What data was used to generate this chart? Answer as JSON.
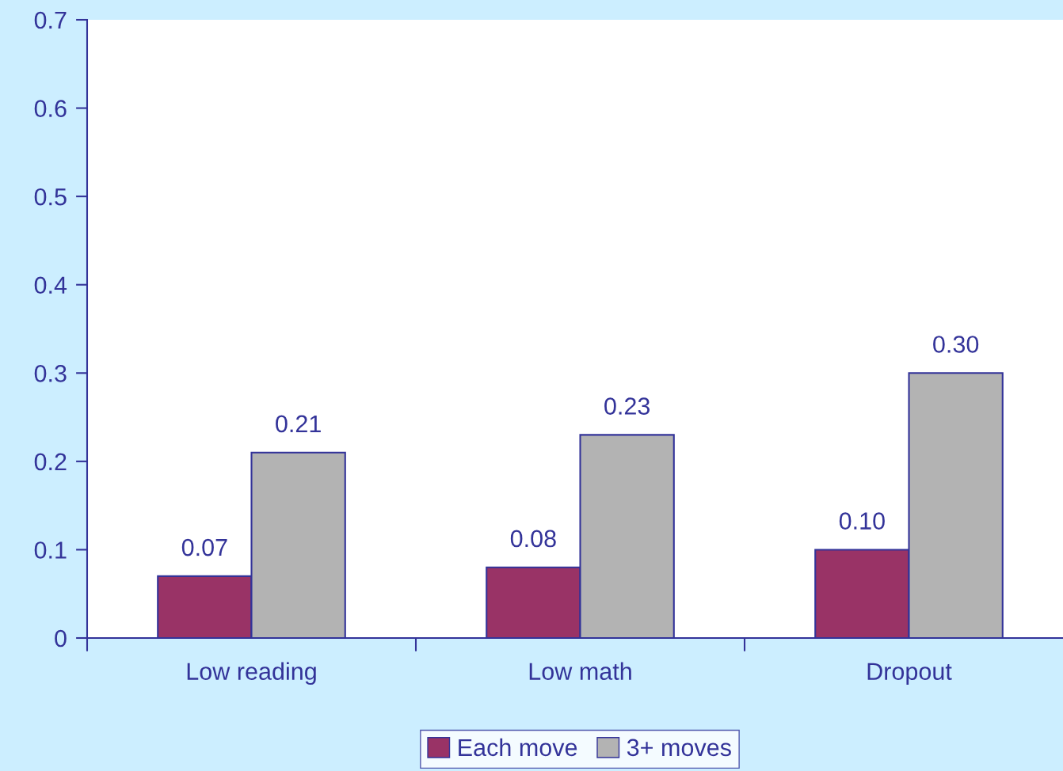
{
  "chart_data": {
    "type": "bar",
    "categories": [
      "Low reading",
      "Low math",
      "Dropout"
    ],
    "series": [
      {
        "name": "Each move",
        "color": "#993366",
        "values": [
          0.07,
          0.08,
          0.1
        ],
        "value_labels": [
          "0.07",
          "0.08",
          "0.10"
        ]
      },
      {
        "name": "3+ moves",
        "color": "#b3b3b3",
        "values": [
          0.21,
          0.23,
          0.3
        ],
        "value_labels": [
          "0.21",
          "0.23",
          "0.30"
        ]
      }
    ],
    "ylim": [
      0,
      0.7
    ],
    "yticks": [
      {
        "value": 0,
        "label": "0"
      },
      0.1,
      0.2,
      0.3,
      0.4,
      0.5,
      0.6,
      0.7
    ],
    "grid": false,
    "legend": "bottom"
  }
}
